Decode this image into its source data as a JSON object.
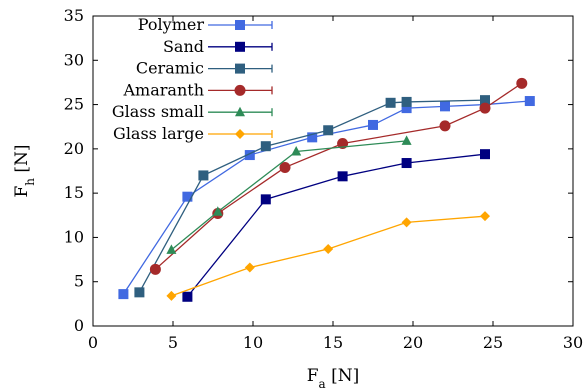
{
  "chart_data": {
    "type": "line",
    "xlabel": "F_a [N]",
    "ylabel": "F_h [N]",
    "xlim": [
      0,
      30
    ],
    "ylim": [
      0,
      35
    ],
    "x_ticks": [
      0,
      5,
      10,
      15,
      20,
      25,
      30
    ],
    "y_ticks": [
      0,
      5,
      10,
      15,
      20,
      25,
      30,
      35
    ],
    "legend_position": "top-left",
    "series": [
      {
        "name": "Polymer",
        "color": "#4169e1",
        "marker": "square",
        "x": [
          1.9,
          5.9,
          9.8,
          13.7,
          17.5,
          19.6,
          22.0,
          24.5,
          27.3
        ],
        "y": [
          3.6,
          14.6,
          19.3,
          21.3,
          22.7,
          24.6,
          24.8,
          25.0,
          25.4
        ]
      },
      {
        "name": "Sand",
        "color": "#000080",
        "marker": "square",
        "x": [
          5.9,
          10.8,
          15.6,
          19.6,
          24.5
        ],
        "y": [
          3.3,
          14.3,
          16.9,
          18.4,
          19.4
        ]
      },
      {
        "name": "Ceramic",
        "color": "#2f5f7f",
        "marker": "square",
        "x": [
          2.9,
          6.9,
          10.8,
          14.7,
          18.6,
          19.6,
          24.5
        ],
        "y": [
          3.8,
          17.0,
          20.3,
          22.1,
          25.2,
          25.3,
          25.5
        ]
      },
      {
        "name": "Amaranth",
        "color": "#a52a2a",
        "marker": "circle",
        "x": [
          3.9,
          7.8,
          12.0,
          15.6,
          22.0,
          24.5,
          26.8
        ],
        "y": [
          6.4,
          12.7,
          17.9,
          20.6,
          22.6,
          24.6,
          27.4
        ]
      },
      {
        "name": "Glass small",
        "color": "#2e8b57",
        "marker": "triangle",
        "x": [
          4.9,
          7.8,
          12.7,
          19.6
        ],
        "y": [
          8.6,
          12.9,
          19.7,
          20.9
        ]
      },
      {
        "name": "Glass large",
        "color": "#ffa500",
        "marker": "diamond",
        "x": [
          4.9,
          9.8,
          14.7,
          19.6,
          24.5
        ],
        "y": [
          3.4,
          6.6,
          8.7,
          11.7,
          12.4
        ]
      }
    ]
  }
}
